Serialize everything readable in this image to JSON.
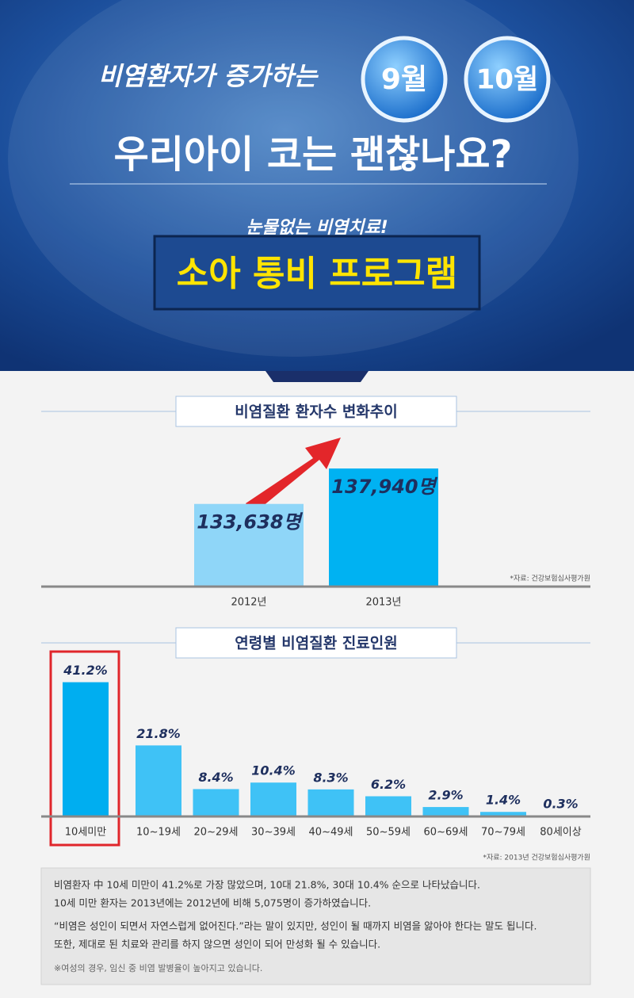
{
  "header": {
    "line1": "비염환자가 증가하는",
    "badges": [
      "9월",
      "10월"
    ],
    "line2": "우리아이 코는 괜찮나요?",
    "kicker": "눈물없는 비염치료!",
    "program": "소아 통비 프로그램"
  },
  "chart_data": [
    {
      "type": "bar",
      "title": "비염질환 환자수 변화추이",
      "categories": [
        "2012년",
        "2013년"
      ],
      "values": [
        133638,
        137940
      ],
      "value_labels": [
        "133,638명",
        "137,940명"
      ],
      "colors": [
        "#8fd6f8",
        "#00b2f2"
      ],
      "ylim": [
        123600,
        139000
      ],
      "source": "*자료: 건강보험심사평가원"
    },
    {
      "type": "bar",
      "title": "연령별 비염질환 진료인원",
      "categories": [
        "10세미만",
        "10~19세",
        "20~29세",
        "30~39세",
        "40~49세",
        "50~59세",
        "60~69세",
        "70~79세",
        "80세이상"
      ],
      "values": [
        41.2,
        21.8,
        8.4,
        10.4,
        8.3,
        6.2,
        2.9,
        1.4,
        0.3
      ],
      "value_labels": [
        "41.2%",
        "21.8%",
        "8.4%",
        "10.4%",
        "8.3%",
        "6.2%",
        "2.9%",
        "1.4%",
        "0.3%"
      ],
      "colors": [
        "#00aef0",
        "#3fc2f6",
        "#3fc2f6",
        "#3fc2f6",
        "#3fc2f6",
        "#3fc2f6",
        "#3fc2f6",
        "#3fc2f6",
        "#3fc2f6"
      ],
      "ylim": [
        0,
        45
      ],
      "source": "*자료: 2013년 건강보험심사평가원"
    }
  ],
  "notes": [
    "비염환자 中 10세 미만이 41.2%로 가장 많았으며, 10대 21.8%, 30대 10.4% 순으로 나타났습니다.",
    "10세 미만 환자는 2013년에는 2012년에 비해 5,075명이 증가하였습니다.",
    "“비염은 성인이 되면서 자연스럽게 없어진다.”라는 말이 있지만, 성인이 될 때까지 비염을 앓아야 한다는 말도 됩니다.",
    "또한, 제대로 된 치료와 관리를 하지 않으면 성인이 되어 만성화 될 수 있습니다.",
    "※여성의 경우, 임신 중 비염 발병율이 높아지고 있습니다."
  ]
}
